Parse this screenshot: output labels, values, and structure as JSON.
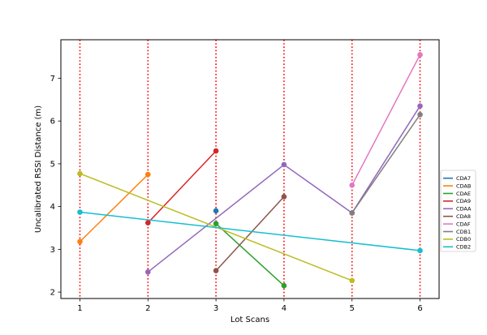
{
  "chart_data": {
    "type": "line",
    "title": "",
    "xlabel": "Lot Scans",
    "ylabel": "Uncalibrated RSSI Distance (m)",
    "xlim": [
      0.72,
      6.28
    ],
    "ylim": [
      1.85,
      7.9
    ],
    "xticks": [
      1,
      2,
      3,
      4,
      5,
      6
    ],
    "yticks": [
      2,
      3,
      4,
      5,
      6,
      7
    ],
    "grid": false,
    "legend_position": "right",
    "vertical_markers": {
      "x": [
        1,
        2,
        3,
        4,
        5,
        6
      ],
      "color": "#ff0000",
      "style": "dotted"
    },
    "series": [
      {
        "name": "CDA7",
        "color": "#1f77b4",
        "points": [
          [
            3,
            3.9
          ]
        ]
      },
      {
        "name": "CDAB",
        "color": "#ff7f0e",
        "points": [
          [
            1,
            3.18
          ],
          [
            2,
            4.75
          ]
        ]
      },
      {
        "name": "CDAE",
        "color": "#2ca02c",
        "points": [
          [
            3,
            3.6
          ],
          [
            4,
            2.15
          ]
        ]
      },
      {
        "name": "CDA9",
        "color": "#d62728",
        "points": [
          [
            2,
            3.62
          ],
          [
            3,
            5.3
          ]
        ]
      },
      {
        "name": "CDAA",
        "color": "#9467bd",
        "points": [
          [
            2,
            2.47
          ],
          [
            4,
            4.98
          ],
          [
            5,
            3.85
          ],
          [
            6,
            6.35
          ]
        ]
      },
      {
        "name": "CDA8",
        "color": "#8c564b",
        "points": [
          [
            3,
            2.5
          ],
          [
            4,
            4.23
          ]
        ]
      },
      {
        "name": "CDAF",
        "color": "#e377c2",
        "points": [
          [
            5,
            4.5
          ],
          [
            6,
            7.55
          ]
        ]
      },
      {
        "name": "CDB1",
        "color": "#7f7f7f",
        "points": [
          [
            5,
            3.85
          ],
          [
            6,
            6.15
          ]
        ]
      },
      {
        "name": "CDB0",
        "color": "#bcbd22",
        "points": [
          [
            1,
            4.77
          ],
          [
            5,
            2.27
          ]
        ]
      },
      {
        "name": "CDB2",
        "color": "#17becf",
        "points": [
          [
            1,
            3.87
          ],
          [
            6,
            2.97
          ]
        ]
      }
    ]
  }
}
